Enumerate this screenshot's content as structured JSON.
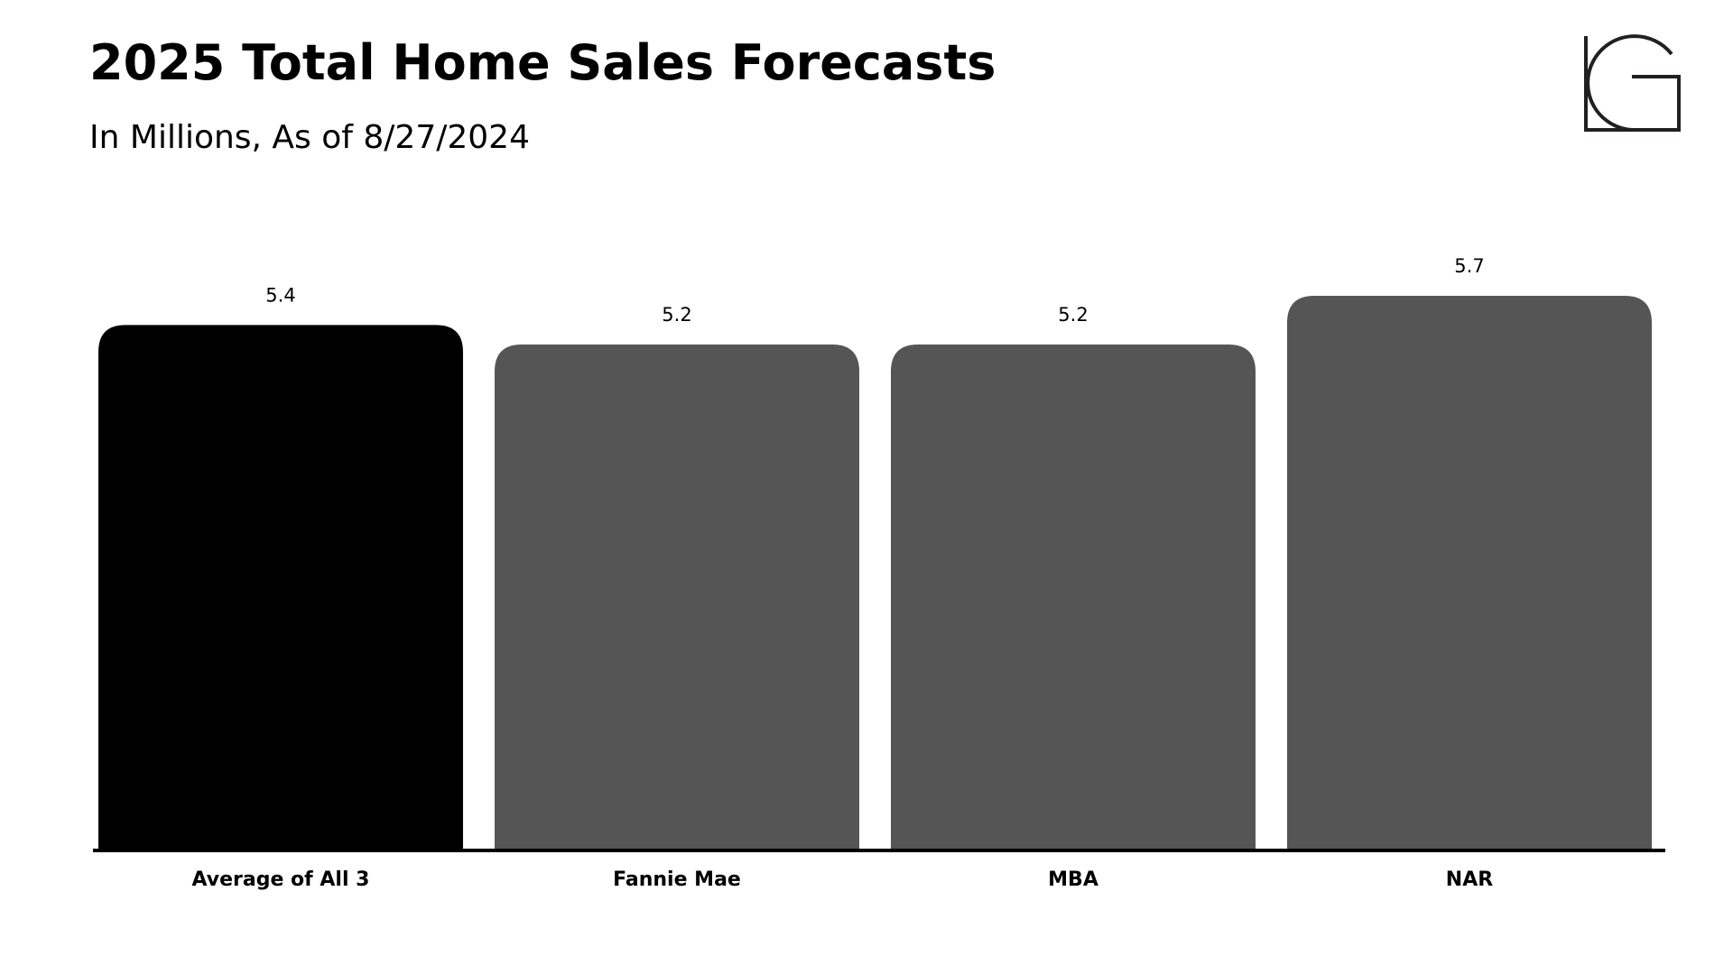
{
  "chart_data": {
    "type": "bar",
    "title": "2025 Total Home Sales Forecasts",
    "subtitle": "In Millions, As of 8/27/2024",
    "categories": [
      "Average of All 3",
      "Fannie Mae",
      "MBA",
      "NAR"
    ],
    "values": [
      5.4,
      5.2,
      5.2,
      5.7
    ],
    "colors": [
      "#000000",
      "#555555",
      "#555555",
      "#555555"
    ]
  }
}
